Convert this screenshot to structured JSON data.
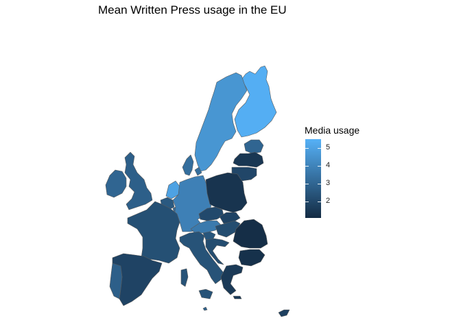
{
  "title": "Mean Written Press usage in the EU",
  "legend": {
    "title": "Media usage",
    "ticks": [
      5,
      4,
      3,
      2
    ],
    "min": 1.1,
    "max": 5.5,
    "color_low": "#132B43",
    "color_high": "#56B1F7"
  },
  "countries": [
    {
      "name": "Finland",
      "value": 5.4
    },
    {
      "name": "Sweden",
      "value": 4.6
    },
    {
      "name": "Estonia",
      "value": 3.0
    },
    {
      "name": "Latvia",
      "value": 1.5
    },
    {
      "name": "Lithuania",
      "value": 2.0
    },
    {
      "name": "Denmark",
      "value": 3.3
    },
    {
      "name": "Ireland",
      "value": 3.0
    },
    {
      "name": "United Kingdom",
      "value": 2.8
    },
    {
      "name": "Netherlands",
      "value": 5.0
    },
    {
      "name": "Belgium",
      "value": 2.6
    },
    {
      "name": "Luxembourg",
      "value": 3.2
    },
    {
      "name": "Germany",
      "value": 3.9
    },
    {
      "name": "Poland",
      "value": 1.4
    },
    {
      "name": "Czech Republic",
      "value": 2.1
    },
    {
      "name": "Slovakia",
      "value": 1.9
    },
    {
      "name": "Austria",
      "value": 3.7
    },
    {
      "name": "Hungary",
      "value": 2.2
    },
    {
      "name": "Slovenia",
      "value": 2.5
    },
    {
      "name": "Croatia",
      "value": 2.2
    },
    {
      "name": "France",
      "value": 2.3
    },
    {
      "name": "Italy",
      "value": 2.4
    },
    {
      "name": "Romania",
      "value": 1.2
    },
    {
      "name": "Bulgaria",
      "value": 1.3
    },
    {
      "name": "Greece",
      "value": 1.6
    },
    {
      "name": "Spain",
      "value": 1.9
    },
    {
      "name": "Portugal",
      "value": 2.8
    },
    {
      "name": "Malta",
      "value": 2.9
    },
    {
      "name": "Cyprus",
      "value": 1.8
    }
  ]
}
